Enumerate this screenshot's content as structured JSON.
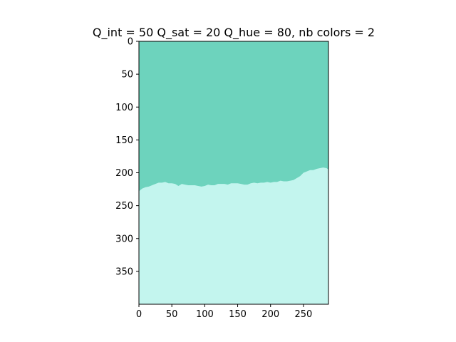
{
  "chart_data": {
    "type": "heatmap",
    "title": "Q_int = 50 Q_sat = 20 Q_hue = 80, nb colors = 2",
    "image_size": {
      "width": 288,
      "height": 400
    },
    "xlim": [
      0,
      288
    ],
    "ylim": [
      400,
      0
    ],
    "x_ticks": [
      0,
      50,
      100,
      150,
      200,
      250
    ],
    "y_ticks": [
      0,
      50,
      100,
      150,
      200,
      250,
      300,
      350
    ],
    "colors": {
      "top_region": "#6dd3bd",
      "bottom_region": "#c3f5ee"
    },
    "boundary": {
      "x": [
        0,
        5,
        10,
        15,
        20,
        25,
        30,
        35,
        40,
        45,
        50,
        55,
        60,
        65,
        70,
        75,
        80,
        85,
        90,
        95,
        100,
        105,
        110,
        115,
        120,
        125,
        130,
        135,
        140,
        145,
        150,
        155,
        160,
        165,
        170,
        175,
        180,
        185,
        190,
        195,
        200,
        205,
        210,
        215,
        220,
        225,
        230,
        235,
        240,
        245,
        250,
        255,
        260,
        265,
        270,
        275,
        280,
        285,
        288
      ],
      "y": [
        228,
        224,
        222,
        221,
        219,
        217,
        215,
        215,
        214,
        216,
        216,
        217,
        220,
        217,
        218,
        219,
        219,
        219,
        220,
        221,
        220,
        218,
        219,
        219,
        217,
        217,
        217,
        218,
        216,
        216,
        216,
        217,
        218,
        218,
        216,
        215,
        216,
        215,
        215,
        214,
        215,
        214,
        214,
        212,
        213,
        213,
        212,
        211,
        208,
        205,
        200,
        198,
        196,
        196,
        194,
        193,
        192,
        193,
        195
      ]
    }
  }
}
